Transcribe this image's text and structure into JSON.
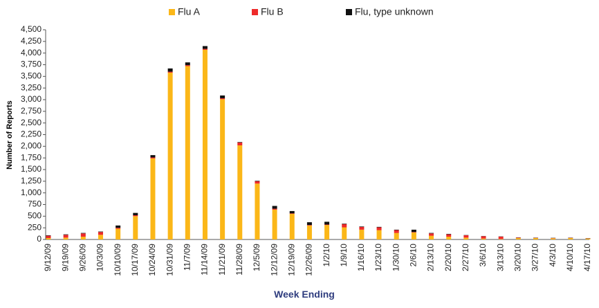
{
  "chart_data": {
    "type": "stacked_bar",
    "x_label": "Week Ending",
    "y_label": "Number of Reports",
    "categories": [
      "9/12/09",
      "9/19/09",
      "9/26/09",
      "10/3/09",
      "10/10/09",
      "10/17/09",
      "10/24/09",
      "10/31/09",
      "11/7/09",
      "11/14/09",
      "11/21/09",
      "11/28/09",
      "12/5/09",
      "12/12/09",
      "12/19/09",
      "12/26/09",
      "1/2/10",
      "1/9/10",
      "1/16/10",
      "1/23/10",
      "1/30/10",
      "2/6/10",
      "2/13/10",
      "2/20/10",
      "2/27/10",
      "3/6/10",
      "3/13/10",
      "3/20/10",
      "3/27/10",
      "4/3/10",
      "4/10/10",
      "4/17/10"
    ],
    "series": [
      {
        "name": "Flu A",
        "color": "#fbb718",
        "values": [
          30,
          40,
          60,
          100,
          230,
          500,
          1740,
          3580,
          3720,
          4070,
          3010,
          2020,
          1200,
          640,
          550,
          300,
          310,
          260,
          210,
          200,
          140,
          150,
          80,
          60,
          40,
          20,
          10,
          30,
          30,
          25,
          30,
          20
        ]
      },
      {
        "name": "Flu B",
        "color": "#ee2a2a",
        "values": [
          50,
          60,
          70,
          60,
          20,
          20,
          20,
          20,
          20,
          20,
          20,
          60,
          50,
          20,
          10,
          10,
          10,
          70,
          60,
          60,
          60,
          10,
          50,
          50,
          50,
          50,
          50,
          10,
          5,
          5,
          5,
          5
        ]
      },
      {
        "name": "Flu, type unknown",
        "color": "#111111",
        "values": [
          10,
          10,
          10,
          10,
          50,
          50,
          50,
          70,
          60,
          60,
          60,
          10,
          10,
          60,
          50,
          60,
          60,
          10,
          10,
          10,
          10,
          50,
          10,
          10,
          5,
          5,
          5,
          5,
          5,
          5,
          5,
          5
        ]
      }
    ],
    "ylim": [
      0,
      4500
    ],
    "yticks": [
      0,
      250,
      500,
      750,
      {
        "value": 1000,
        "label": "1,000"
      },
      {
        "value": 1250,
        "label": "1,250"
      },
      {
        "value": 1500,
        "label": "1,500"
      },
      {
        "value": 1750,
        "label": "1,750"
      },
      {
        "value": 2000,
        "label": "2,000"
      },
      {
        "value": 2250,
        "label": "2,250"
      },
      {
        "value": 2500,
        "label": "2,500"
      },
      {
        "value": 2750,
        "label": "2,750"
      },
      {
        "value": 3000,
        "label": "3,000"
      },
      {
        "value": 3250,
        "label": "3,250"
      },
      {
        "value": 3500,
        "label": "3,500"
      },
      {
        "value": 3750,
        "label": "3,750"
      },
      {
        "value": 4000,
        "label": "4,000"
      },
      {
        "value": 4250,
        "label": "4,250"
      },
      {
        "value": 4500,
        "label": "4,500"
      }
    ],
    "grid": false,
    "legend": "top"
  }
}
